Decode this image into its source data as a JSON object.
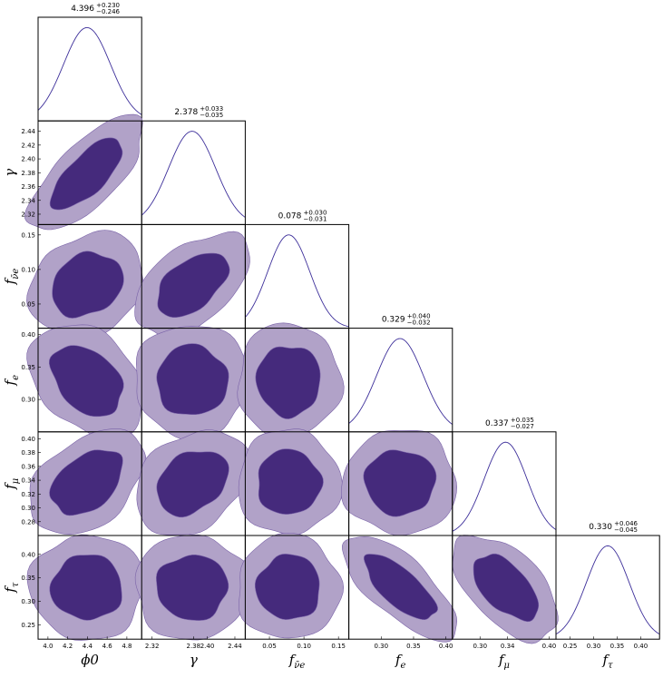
{
  "chart_data": {
    "type": "corner",
    "colors": {
      "dark": "#452a7c",
      "light": "#b1a2c8",
      "edge": "#7a63a8",
      "line": "#3d2f9a"
    },
    "parameters": [
      {
        "key": "phi0",
        "axis_label": "ϕ0",
        "median": 4.396,
        "title": {
          "value": "4.396",
          "plus": "+0.230",
          "minus": "−0.246"
        },
        "range": [
          3.9,
          4.95
        ],
        "ticks": [
          4.0,
          4.2,
          4.4,
          4.6,
          4.8
        ],
        "tick_labels": [
          "4.0",
          "4.2",
          "4.4",
          "4.6",
          "4.8"
        ]
      },
      {
        "key": "gamma",
        "axis_label": "γ",
        "median": 2.378,
        "title": {
          "value": "2.378",
          "plus": "+0.033",
          "minus": "−0.035"
        },
        "range": [
          2.305,
          2.455
        ],
        "ticks": [
          2.32,
          2.34,
          2.36,
          2.38,
          2.4,
          2.42,
          2.44
        ],
        "tick_labels": [
          "2.32",
          "2.34",
          "2.36",
          "2.38",
          "2.40",
          "2.42",
          "2.44"
        ],
        "x_tick_index": [
          0,
          3,
          4,
          6
        ]
      },
      {
        "key": "f_nuebar",
        "axis_label": "f",
        "axis_sub": "ν̄e",
        "median": 0.078,
        "title": {
          "value": "0.078",
          "plus": "+0.030",
          "minus": "−0.031"
        },
        "range": [
          0.015,
          0.165
        ],
        "ticks": [
          0.05,
          0.1,
          0.15
        ],
        "tick_labels": [
          "0.05",
          "0.10",
          "0.15"
        ]
      },
      {
        "key": "f_e",
        "axis_label": "f",
        "axis_sub": "e",
        "median": 0.329,
        "title": {
          "value": "0.329",
          "plus": "+0.040",
          "minus": "−0.032"
        },
        "range": [
          0.25,
          0.41
        ],
        "ticks": [
          0.3,
          0.35,
          0.4
        ],
        "tick_labels": [
          "0.30",
          "0.35",
          "0.40"
        ]
      },
      {
        "key": "f_mu",
        "axis_label": "f",
        "axis_sub": "μ",
        "median": 0.337,
        "title": {
          "value": "0.337",
          "plus": "+0.035",
          "minus": "−0.027"
        },
        "range": [
          0.26,
          0.41
        ],
        "ticks": [
          0.28,
          0.3,
          0.32,
          0.34,
          0.36,
          0.38,
          0.4
        ],
        "tick_labels": [
          "0.28",
          "0.30",
          "0.32",
          "0.34",
          "0.36",
          "0.38",
          "0.40"
        ],
        "x_tick_index": [
          1,
          3,
          6
        ]
      },
      {
        "key": "f_tau",
        "axis_label": "f",
        "axis_sub": "τ",
        "median": 0.33,
        "title": {
          "value": "0.330",
          "plus": "+0.046",
          "minus": "−0.045"
        },
        "range": [
          0.22,
          0.44
        ],
        "ticks": [
          0.25,
          0.3,
          0.35,
          0.4
        ],
        "tick_labels": [
          "0.25",
          "0.30",
          "0.35",
          "0.40"
        ]
      }
    ],
    "correlations": [
      [
        1.0,
        0.72,
        0.2,
        -0.35,
        0.4,
        0.0
      ],
      [
        0.72,
        1.0,
        0.5,
        0.0,
        0.3,
        0.0
      ],
      [
        0.2,
        0.5,
        1.0,
        0.0,
        0.0,
        0.0
      ],
      [
        -0.35,
        0.0,
        0.0,
        1.0,
        0.0,
        -0.72
      ],
      [
        0.4,
        0.3,
        0.0,
        0.0,
        1.0,
        -0.55
      ],
      [
        0.0,
        0.0,
        0.0,
        -0.72,
        -0.55,
        1.0
      ]
    ],
    "contour_levels": [
      "68%",
      "95%"
    ]
  }
}
